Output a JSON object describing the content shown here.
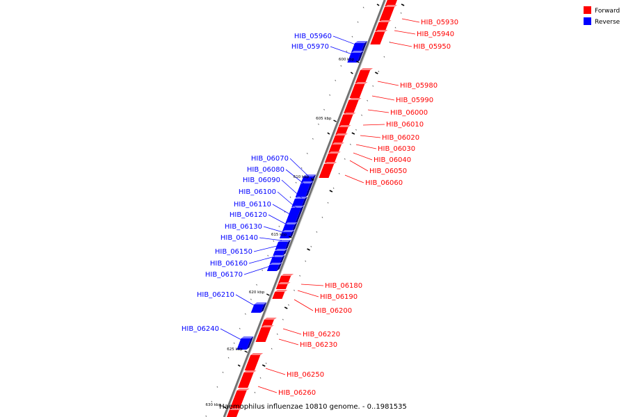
{
  "legend": {
    "forward": {
      "label": "Forward",
      "color": "#ff0000"
    },
    "reverse": {
      "label": "Reverse",
      "color": "#0000ff"
    }
  },
  "caption": "Haemophilus influenzae 10810 genome. - 0..1981535",
  "kbp_marks": [
    "600 kbp",
    "605 kbp",
    "610 kbp",
    "615 kbp",
    "620 kbp",
    "625 kbp",
    "630 kbp"
  ],
  "forward_genes": [
    "HIB_05930",
    "HIB_05940",
    "HIB_05950",
    "HIB_05980",
    "HIB_05990",
    "HIB_06000",
    "HIB_06010",
    "HIB_06020",
    "HIB_06030",
    "HIB_06040",
    "HIB_06050",
    "HIB_06060",
    "HIB_06180",
    "HIB_06190",
    "HIB_06200",
    "HIB_06220",
    "HIB_06230",
    "HIB_06250",
    "HIB_06260"
  ],
  "reverse_genes": [
    "HIB_05960",
    "HIB_05970",
    "HIB_06070",
    "HIB_06080",
    "HIB_06090",
    "HIB_06100",
    "HIB_06110",
    "HIB_06120",
    "HIB_06130",
    "HIB_06140",
    "HIB_06150",
    "HIB_06160",
    "HIB_06170",
    "HIB_06210",
    "HIB_06240"
  ]
}
